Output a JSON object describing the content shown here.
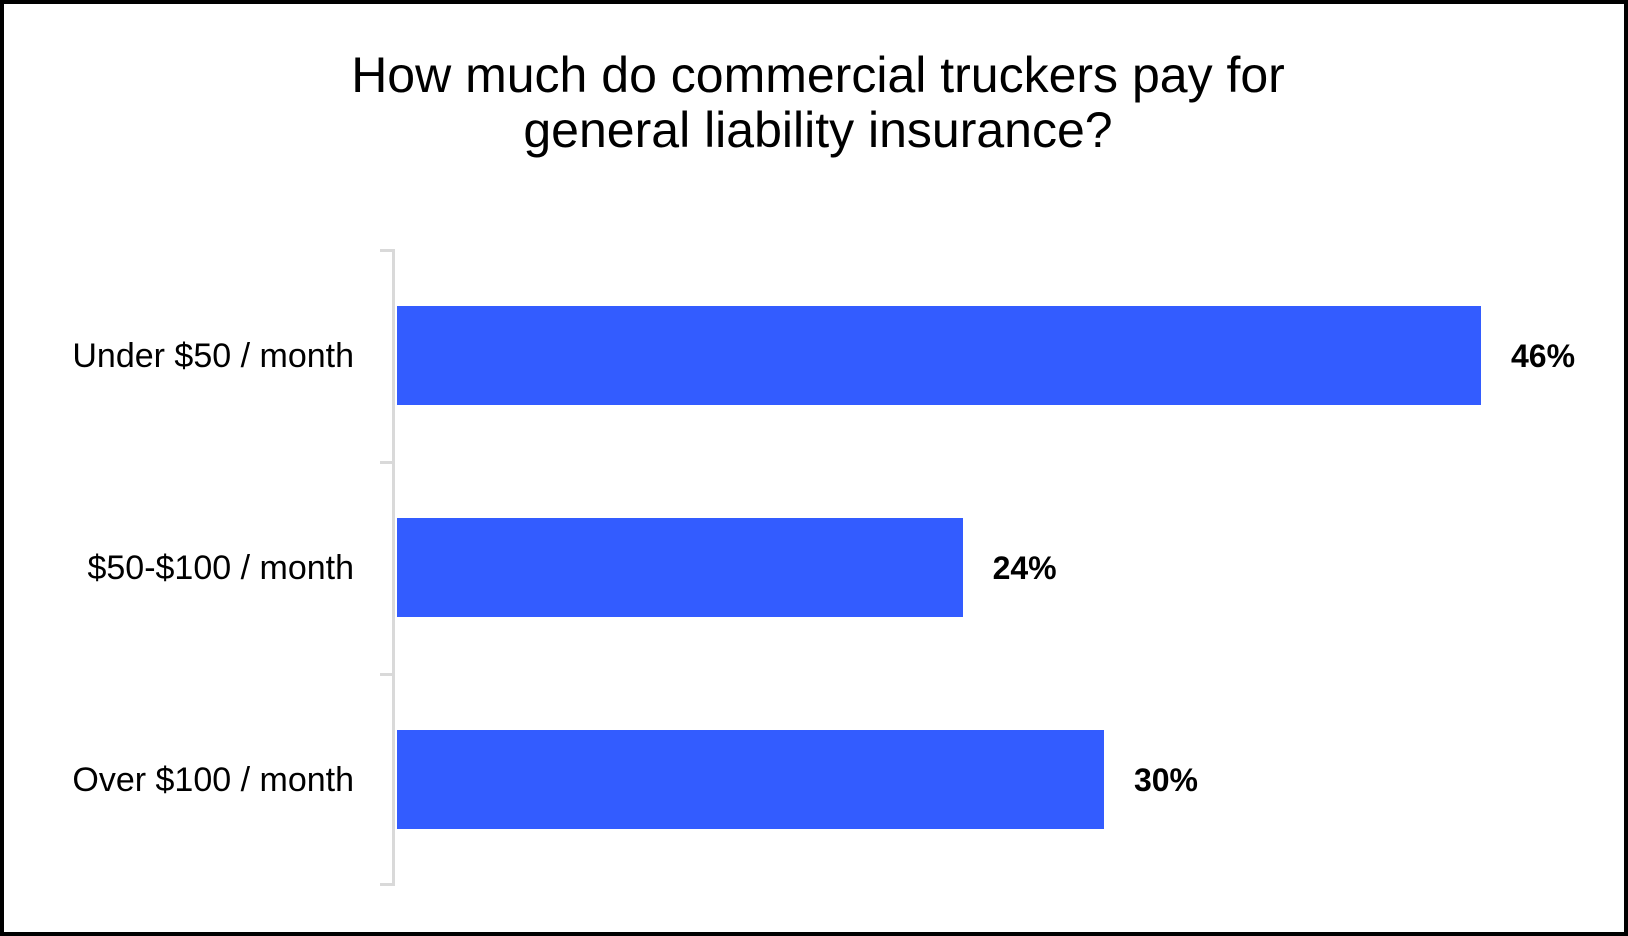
{
  "chart_data": {
    "type": "bar",
    "orientation": "horizontal",
    "title": "How much do commercial truckers pay for general liability insurance?",
    "title_lines": [
      "How much do commercial truckers pay for",
      "general liability insurance?"
    ],
    "categories": [
      "Under $50 / month",
      "$50-$100 / month",
      "Over $100 / month"
    ],
    "values": [
      46,
      24,
      30
    ],
    "value_labels": [
      "46%",
      "24%",
      "30%"
    ],
    "unit": "%",
    "xlabel": "",
    "ylabel": "",
    "xlim": [
      0,
      50
    ],
    "grid": false,
    "legend": null,
    "bar_color": "#335cff",
    "axis_color": "#d9d9d9"
  }
}
